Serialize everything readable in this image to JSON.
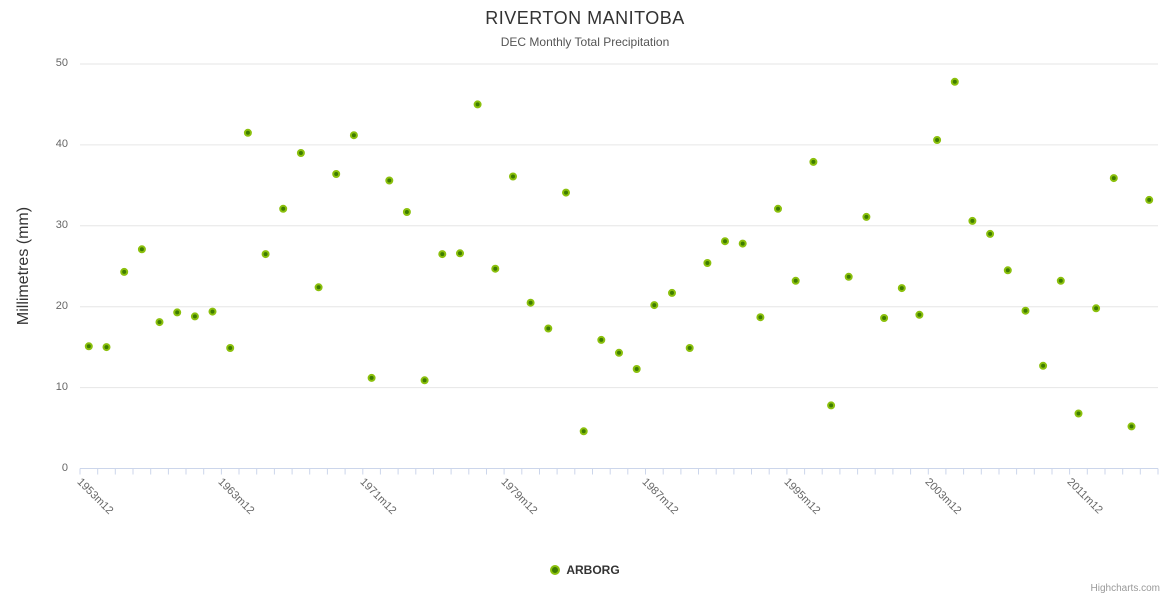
{
  "chart_data": {
    "type": "scatter",
    "title": "RIVERTON MANITOBA",
    "subtitle": "DEC Monthly Total Precipitation",
    "ylabel": "Millimetres (mm)",
    "ylim": [
      0,
      50
    ],
    "y_ticks": [
      0,
      10,
      20,
      30,
      40,
      50
    ],
    "x_slot_count": 61,
    "x_tick_labels": [
      {
        "index": 0,
        "label": "1953m12"
      },
      {
        "index": 8,
        "label": "1963m12"
      },
      {
        "index": 16,
        "label": "1971m12"
      },
      {
        "index": 24,
        "label": "1979m12"
      },
      {
        "index": 32,
        "label": "1987m12"
      },
      {
        "index": 40,
        "label": "1995m12"
      },
      {
        "index": 48,
        "label": "2003m12"
      },
      {
        "index": 56,
        "label": "2011m12"
      }
    ],
    "grid": true,
    "legend_position": "bottom-center",
    "series": [
      {
        "name": "ARBORG",
        "marker_color": "#3e7c00",
        "marker_rim_color": "#8bc00d",
        "values": [
          15.1,
          15.0,
          24.3,
          27.1,
          18.1,
          19.3,
          18.8,
          19.4,
          14.9,
          41.5,
          26.5,
          32.1,
          39.0,
          22.4,
          36.4,
          41.2,
          11.2,
          35.6,
          31.7,
          10.9,
          26.5,
          26.6,
          45.0,
          24.7,
          36.1,
          20.5,
          17.3,
          34.1,
          4.6,
          15.9,
          14.3,
          12.3,
          20.2,
          21.7,
          14.9,
          25.4,
          28.1,
          27.8,
          18.7,
          32.1,
          23.2,
          37.9,
          7.8,
          23.7,
          31.1,
          18.6,
          22.3,
          19.0,
          40.6,
          47.8,
          30.6,
          29.0,
          24.5,
          19.5,
          12.7,
          23.2,
          6.8,
          19.8,
          35.9,
          5.2,
          33.2
        ]
      }
    ],
    "credits": "Highcharts.com",
    "colors": {
      "title": "#333333",
      "subtitle": "#555555",
      "axis_label": "#666666",
      "gridline": "#e6e6e6",
      "axis_line": "#ccd6eb",
      "legend_text": "#333333",
      "credits_text": "#999999"
    }
  }
}
